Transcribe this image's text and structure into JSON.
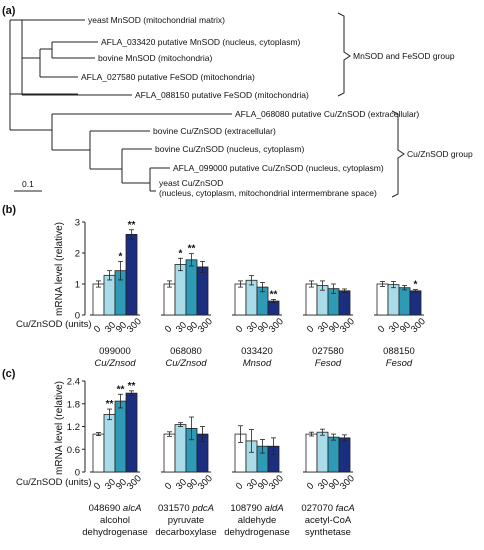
{
  "panels": {
    "a": "(a)",
    "b": "(b)",
    "c": "(c)"
  },
  "tree": {
    "leaves": [
      "yeast MnSOD (mitochondrial matrix)",
      "AFLA_033420 putative MnSOD (nucleus, cytoplasm)",
      "bovine MnSOD (mitochondria)",
      "AFLA_027580 putative FeSOD (mitochondria)",
      "AFLA_088150 putative FeSOD (mitochondria)",
      "AFLA_068080 putative Cu/ZnSOD (extracellular)",
      "bovine Cu/ZnSOD (extracellular)",
      "bovine Cu/ZnSOD (nucleus, cytoplasm)",
      "AFLA_099000 putative Cu/ZnSOD (nucleus, cytoplasm)",
      "yeast Cu/ZnSOD",
      "(nucleus, cytoplasm, mitochondrial intermembrane space)"
    ],
    "group1": "MnSOD and FeSOD group",
    "group2": "Cu/ZnSOD group",
    "scale_label": "0.1"
  },
  "colors": {
    "d0": "#ffffff",
    "d30": "#a9dbe8",
    "d90": "#2e9ab5",
    "d300": "#1c2e80"
  },
  "chart_data": [
    {
      "type": "bar",
      "panel": "b",
      "ylabel": "mRNA level (relative)",
      "xlabel": "Cu/ZnSOD (units)",
      "ylim": [
        0,
        3
      ],
      "yticks": [
        "0",
        "1",
        "2",
        "3"
      ],
      "dose_labels": [
        "0",
        "30",
        "90",
        "300"
      ],
      "groups": [
        {
          "label": [
            "099000",
            "Cu/Znsod"
          ],
          "values": [
            1.0,
            1.28,
            1.43,
            2.6
          ],
          "errors": [
            0.1,
            0.15,
            0.3,
            0.15
          ],
          "stars": [
            "",
            "",
            "*",
            "**"
          ]
        },
        {
          "label": [
            "068080",
            "Cu/Znsod"
          ],
          "values": [
            1.0,
            1.63,
            1.78,
            1.55
          ],
          "errors": [
            0.1,
            0.2,
            0.2,
            0.18
          ],
          "stars": [
            "",
            "*",
            "**",
            ""
          ]
        },
        {
          "label": [
            "033420",
            "Mnsod"
          ],
          "values": [
            1.0,
            1.12,
            0.9,
            0.45
          ],
          "errors": [
            0.1,
            0.15,
            0.15,
            0.05
          ],
          "stars": [
            "",
            "",
            "",
            "**"
          ]
        },
        {
          "label": [
            "027580",
            "Fesod"
          ],
          "values": [
            1.0,
            0.95,
            0.85,
            0.78
          ],
          "errors": [
            0.1,
            0.15,
            0.15,
            0.06
          ],
          "stars": [
            "",
            "",
            "",
            ""
          ]
        },
        {
          "label": [
            "088150",
            "Fesod"
          ],
          "values": [
            1.0,
            0.98,
            0.88,
            0.78
          ],
          "errors": [
            0.08,
            0.1,
            0.07,
            0.04
          ],
          "stars": [
            "",
            "",
            "",
            "*"
          ]
        }
      ]
    },
    {
      "type": "bar",
      "panel": "c",
      "ylabel": "mRNA level (relative)",
      "xlabel": "Cu/ZnSOD (units)",
      "ylim": [
        0,
        2.4
      ],
      "yticks": [
        "0",
        "0.6",
        "1.2",
        "1.8",
        "2.4"
      ],
      "dose_labels": [
        "0",
        "30",
        "90",
        "300"
      ],
      "groups": [
        {
          "label": [
            "048690",
            "alcA",
            "alcohol",
            "dehydrogenase"
          ],
          "values": [
            1.0,
            1.52,
            1.87,
            2.08
          ],
          "errors": [
            0.04,
            0.14,
            0.18,
            0.06
          ],
          "stars": [
            "",
            "**",
            "**",
            "**"
          ]
        },
        {
          "label": [
            "031570",
            "pdcA",
            "pyruvate",
            "decarboxylase"
          ],
          "values": [
            1.0,
            1.25,
            1.15,
            1.0
          ],
          "errors": [
            0.06,
            0.05,
            0.3,
            0.2
          ],
          "stars": [
            "",
            "",
            "",
            ""
          ]
        },
        {
          "label": [
            "108790",
            "aldA",
            "aldehyde",
            "dehydrogenase"
          ],
          "values": [
            1.0,
            0.82,
            0.68,
            0.68
          ],
          "errors": [
            0.22,
            0.3,
            0.18,
            0.22
          ],
          "stars": [
            "",
            "",
            "",
            ""
          ]
        },
        {
          "label": [
            "027070",
            "facA",
            "acetyl-CoA",
            "synthetase"
          ],
          "values": [
            1.0,
            1.05,
            0.92,
            0.9
          ],
          "errors": [
            0.05,
            0.08,
            0.08,
            0.08
          ],
          "stars": [
            "",
            "",
            "",
            ""
          ]
        }
      ]
    }
  ]
}
